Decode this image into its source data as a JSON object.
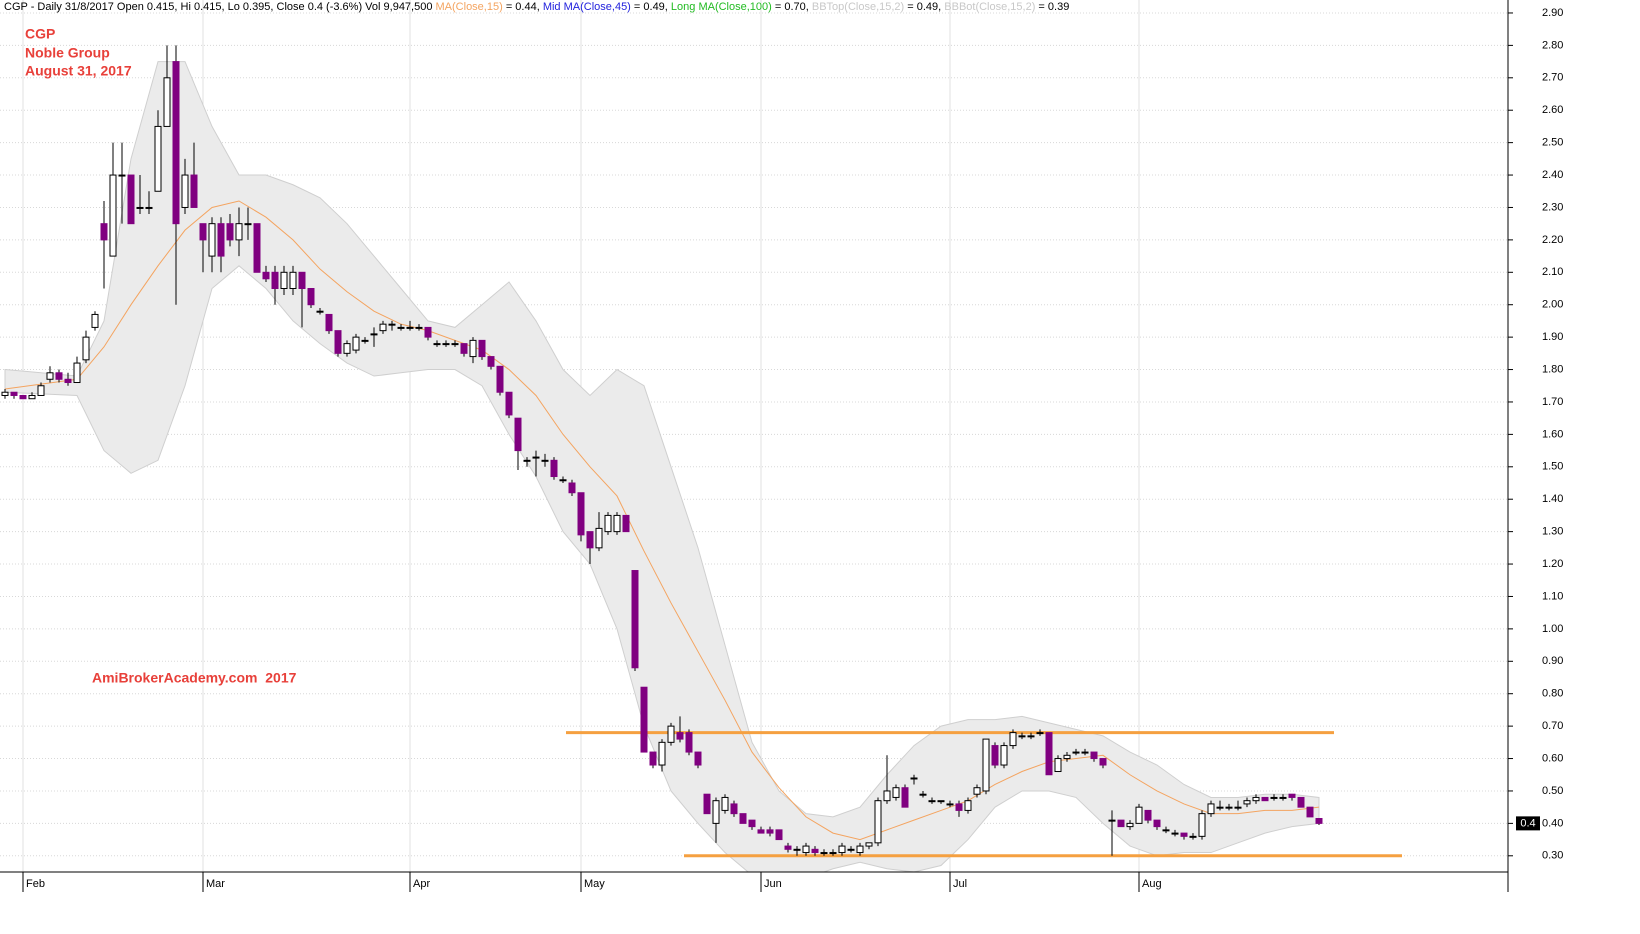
{
  "chart_data": {
    "type": "candlestick",
    "header": [
      {
        "text": "CGP - Daily 31/8/2017 Open 0.415, Hi 0.415, Lo 0.395, Close 0.4 (-3.6%) Vol 9,947,500 ",
        "color": "#000000"
      },
      {
        "text": "MA(Close,15)",
        "color": "#f4a460"
      },
      {
        "text": " = 0.44, ",
        "color": "#000000"
      },
      {
        "text": "Mid MA(Close,45)",
        "color": "#2222dd"
      },
      {
        "text": " = 0.49, ",
        "color": "#000000"
      },
      {
        "text": "Long MA(Close,100)",
        "color": "#22bb22"
      },
      {
        "text": " = 0.70, ",
        "color": "#000000"
      },
      {
        "text": "BBTop(Close,15,2)",
        "color": "#c8c8c8"
      },
      {
        "text": " = 0.49, ",
        "color": "#000000"
      },
      {
        "text": "BBBot(Close,15,2)",
        "color": "#c8c8c8"
      },
      {
        "text": " = 0.39",
        "color": "#000000"
      }
    ],
    "labels": [
      "CGP",
      "Noble Group",
      "August 31, 2017"
    ],
    "watermark": "AmiBrokerAcademy.com  2017",
    "ylim": [
      0.25,
      2.94
    ],
    "yticks": [
      {
        "value": 0.3,
        "label": "0.30"
      },
      {
        "value": 0.4,
        "label": "0.40"
      },
      {
        "value": 0.5,
        "label": "0.50"
      },
      {
        "value": 0.6,
        "label": "0.60"
      },
      {
        "value": 0.7,
        "label": "0.70"
      },
      {
        "value": 0.8,
        "label": "0.80"
      },
      {
        "value": 0.9,
        "label": "0.90"
      },
      {
        "value": 1.0,
        "label": "1.00"
      },
      {
        "value": 1.1,
        "label": "1.10"
      },
      {
        "value": 1.2,
        "label": "1.20"
      },
      {
        "value": 1.3,
        "label": "1.30"
      },
      {
        "value": 1.4,
        "label": "1.40"
      },
      {
        "value": 1.5,
        "label": "1.50"
      },
      {
        "value": 1.6,
        "label": "1.60"
      },
      {
        "value": 1.7,
        "label": "1.70"
      },
      {
        "value": 1.8,
        "label": "1.80"
      },
      {
        "value": 1.9,
        "label": "1.90"
      },
      {
        "value": 2.0,
        "label": "2.00"
      },
      {
        "value": 2.1,
        "label": "2.10"
      },
      {
        "value": 2.2,
        "label": "2.20"
      },
      {
        "value": 2.3,
        "label": "2.30"
      },
      {
        "value": 2.4,
        "label": "2.40"
      },
      {
        "value": 2.5,
        "label": "2.50"
      },
      {
        "value": 2.6,
        "label": "2.60"
      },
      {
        "value": 2.7,
        "label": "2.70"
      },
      {
        "value": 2.8,
        "label": "2.80"
      },
      {
        "value": 2.9,
        "label": "2.90"
      }
    ],
    "x_labels": [
      {
        "label": "Feb",
        "index": 2
      },
      {
        "label": "Mar",
        "index": 22
      },
      {
        "label": "Apr",
        "index": 45
      },
      {
        "label": "May",
        "index": 64
      },
      {
        "label": "Jun",
        "index": 84
      },
      {
        "label": "Jul",
        "index": 105
      },
      {
        "label": "Aug",
        "index": 126
      }
    ],
    "grid": true,
    "up_color": "#ffffff",
    "down_color": "#800080",
    "ohlc": [
      [
        1.72,
        1.74,
        1.71,
        1.73
      ],
      [
        1.73,
        1.73,
        1.71,
        1.72
      ],
      [
        1.72,
        1.72,
        1.71,
        1.71
      ],
      [
        1.71,
        1.73,
        1.71,
        1.72
      ],
      [
        1.72,
        1.76,
        1.72,
        1.75
      ],
      [
        1.77,
        1.81,
        1.76,
        1.79
      ],
      [
        1.79,
        1.8,
        1.76,
        1.77
      ],
      [
        1.77,
        1.79,
        1.75,
        1.76
      ],
      [
        1.76,
        1.84,
        1.76,
        1.82
      ],
      [
        1.83,
        1.92,
        1.82,
        1.9
      ],
      [
        1.93,
        1.98,
        1.92,
        1.97
      ],
      [
        2.25,
        2.32,
        2.05,
        2.2
      ],
      [
        2.15,
        2.5,
        2.15,
        2.4
      ],
      [
        2.4,
        2.5,
        2.25,
        2.4
      ],
      [
        2.4,
        2.4,
        2.25,
        2.25
      ],
      [
        2.3,
        2.4,
        2.28,
        2.3
      ],
      [
        2.3,
        2.35,
        2.28,
        2.3
      ],
      [
        2.35,
        2.6,
        2.35,
        2.55
      ],
      [
        2.55,
        2.8,
        2.55,
        2.7
      ],
      [
        2.75,
        2.8,
        2.0,
        2.25
      ],
      [
        2.3,
        2.45,
        2.28,
        2.4
      ],
      [
        2.4,
        2.5,
        2.3,
        2.3
      ],
      [
        2.25,
        2.25,
        2.1,
        2.2
      ],
      [
        2.15,
        2.27,
        2.1,
        2.25
      ],
      [
        2.25,
        2.27,
        2.1,
        2.15
      ],
      [
        2.25,
        2.28,
        2.18,
        2.2
      ],
      [
        2.2,
        2.3,
        2.15,
        2.25
      ],
      [
        2.25,
        2.3,
        2.2,
        2.25
      ],
      [
        2.25,
        2.25,
        2.1,
        2.1
      ],
      [
        2.1,
        2.12,
        2.07,
        2.08
      ],
      [
        2.1,
        2.12,
        2.0,
        2.05
      ],
      [
        2.05,
        2.12,
        2.03,
        2.1
      ],
      [
        2.05,
        2.12,
        2.03,
        2.1
      ],
      [
        2.1,
        2.1,
        1.93,
        2.05
      ],
      [
        2.05,
        2.05,
        1.99,
        2.0
      ],
      [
        1.98,
        1.99,
        1.97,
        1.98
      ],
      [
        1.97,
        1.97,
        1.91,
        1.92
      ],
      [
        1.92,
        1.92,
        1.84,
        1.85
      ],
      [
        1.85,
        1.89,
        1.84,
        1.88
      ],
      [
        1.86,
        1.91,
        1.85,
        1.9
      ],
      [
        1.89,
        1.9,
        1.88,
        1.89
      ],
      [
        1.91,
        1.93,
        1.87,
        1.91
      ],
      [
        1.92,
        1.95,
        1.91,
        1.94
      ],
      [
        1.94,
        1.95,
        1.92,
        1.94
      ],
      [
        1.93,
        1.94,
        1.92,
        1.93
      ],
      [
        1.93,
        1.95,
        1.92,
        1.93
      ],
      [
        1.93,
        1.94,
        1.92,
        1.93
      ],
      [
        1.93,
        1.93,
        1.89,
        1.9
      ],
      [
        1.88,
        1.89,
        1.87,
        1.88
      ],
      [
        1.88,
        1.89,
        1.87,
        1.88
      ],
      [
        1.88,
        1.89,
        1.87,
        1.88
      ],
      [
        1.88,
        1.88,
        1.84,
        1.85
      ],
      [
        1.84,
        1.9,
        1.82,
        1.89
      ],
      [
        1.89,
        1.89,
        1.83,
        1.84
      ],
      [
        1.84,
        1.84,
        1.8,
        1.81
      ],
      [
        1.81,
        1.81,
        1.72,
        1.73
      ],
      [
        1.73,
        1.73,
        1.65,
        1.66
      ],
      [
        1.65,
        1.65,
        1.49,
        1.55
      ],
      [
        1.52,
        1.53,
        1.5,
        1.52
      ],
      [
        1.53,
        1.55,
        1.47,
        1.53
      ],
      [
        1.52,
        1.54,
        1.5,
        1.52
      ],
      [
        1.52,
        1.53,
        1.46,
        1.47
      ],
      [
        1.46,
        1.47,
        1.45,
        1.46
      ],
      [
        1.45,
        1.46,
        1.41,
        1.42
      ],
      [
        1.42,
        1.42,
        1.27,
        1.29
      ],
      [
        1.3,
        1.3,
        1.2,
        1.25
      ],
      [
        1.25,
        1.36,
        1.24,
        1.31
      ],
      [
        1.3,
        1.36,
        1.29,
        1.35
      ],
      [
        1.3,
        1.36,
        1.29,
        1.35
      ],
      [
        1.35,
        1.35,
        1.3,
        1.3
      ],
      [
        1.18,
        1.18,
        0.87,
        0.88
      ],
      [
        0.82,
        0.82,
        0.62,
        0.62
      ],
      [
        0.62,
        0.62,
        0.57,
        0.58
      ],
      [
        0.58,
        0.66,
        0.56,
        0.65
      ],
      [
        0.65,
        0.71,
        0.64,
        0.7
      ],
      [
        0.68,
        0.73,
        0.65,
        0.66
      ],
      [
        0.68,
        0.69,
        0.61,
        0.62
      ],
      [
        0.62,
        0.62,
        0.57,
        0.58
      ],
      [
        0.49,
        0.49,
        0.43,
        0.43
      ],
      [
        0.4,
        0.48,
        0.34,
        0.47
      ],
      [
        0.44,
        0.49,
        0.43,
        0.48
      ],
      [
        0.46,
        0.47,
        0.42,
        0.43
      ],
      [
        0.43,
        0.43,
        0.4,
        0.4
      ],
      [
        0.41,
        0.41,
        0.38,
        0.39
      ],
      [
        0.38,
        0.39,
        0.37,
        0.37
      ],
      [
        0.38,
        0.39,
        0.36,
        0.37
      ],
      [
        0.38,
        0.38,
        0.35,
        0.35
      ],
      [
        0.33,
        0.34,
        0.31,
        0.32
      ],
      [
        0.32,
        0.33,
        0.3,
        0.32
      ],
      [
        0.31,
        0.34,
        0.3,
        0.33
      ],
      [
        0.32,
        0.33,
        0.3,
        0.31
      ],
      [
        0.31,
        0.32,
        0.3,
        0.31
      ],
      [
        0.31,
        0.32,
        0.3,
        0.31
      ],
      [
        0.31,
        0.34,
        0.3,
        0.33
      ],
      [
        0.32,
        0.33,
        0.31,
        0.32
      ],
      [
        0.31,
        0.34,
        0.3,
        0.33
      ],
      [
        0.33,
        0.34,
        0.32,
        0.34
      ],
      [
        0.34,
        0.48,
        0.33,
        0.47
      ],
      [
        0.47,
        0.61,
        0.46,
        0.5
      ],
      [
        0.48,
        0.52,
        0.47,
        0.51
      ],
      [
        0.51,
        0.52,
        0.45,
        0.45
      ],
      [
        0.54,
        0.55,
        0.52,
        0.54
      ],
      [
        0.49,
        0.5,
        0.48,
        0.49
      ],
      [
        0.47,
        0.48,
        0.46,
        0.47
      ],
      [
        0.47,
        0.47,
        0.46,
        0.47
      ],
      [
        0.46,
        0.47,
        0.45,
        0.46
      ],
      [
        0.46,
        0.47,
        0.42,
        0.44
      ],
      [
        0.44,
        0.48,
        0.43,
        0.47
      ],
      [
        0.49,
        0.52,
        0.48,
        0.51
      ],
      [
        0.5,
        0.66,
        0.49,
        0.66
      ],
      [
        0.64,
        0.65,
        0.57,
        0.58
      ],
      [
        0.58,
        0.65,
        0.57,
        0.64
      ],
      [
        0.64,
        0.69,
        0.63,
        0.68
      ],
      [
        0.67,
        0.68,
        0.66,
        0.67
      ],
      [
        0.67,
        0.68,
        0.66,
        0.67
      ],
      [
        0.68,
        0.69,
        0.67,
        0.68
      ],
      [
        0.68,
        0.68,
        0.55,
        0.55
      ],
      [
        0.56,
        0.61,
        0.56,
        0.6
      ],
      [
        0.6,
        0.62,
        0.59,
        0.61
      ],
      [
        0.62,
        0.63,
        0.61,
        0.62
      ],
      [
        0.62,
        0.63,
        0.61,
        0.62
      ],
      [
        0.62,
        0.62,
        0.59,
        0.6
      ],
      [
        0.6,
        0.6,
        0.57,
        0.58
      ],
      [
        0.41,
        0.44,
        0.3,
        0.41
      ],
      [
        0.41,
        0.41,
        0.39,
        0.39
      ],
      [
        0.39,
        0.41,
        0.38,
        0.4
      ],
      [
        0.4,
        0.46,
        0.4,
        0.45
      ],
      [
        0.44,
        0.44,
        0.4,
        0.41
      ],
      [
        0.41,
        0.41,
        0.38,
        0.39
      ],
      [
        0.38,
        0.39,
        0.37,
        0.38
      ],
      [
        0.37,
        0.38,
        0.36,
        0.37
      ],
      [
        0.37,
        0.37,
        0.35,
        0.36
      ],
      [
        0.36,
        0.37,
        0.35,
        0.36
      ],
      [
        0.36,
        0.44,
        0.35,
        0.43
      ],
      [
        0.43,
        0.47,
        0.42,
        0.46
      ],
      [
        0.45,
        0.47,
        0.44,
        0.45
      ],
      [
        0.45,
        0.46,
        0.44,
        0.45
      ],
      [
        0.45,
        0.47,
        0.44,
        0.45
      ],
      [
        0.46,
        0.48,
        0.45,
        0.47
      ],
      [
        0.47,
        0.49,
        0.46,
        0.48
      ],
      [
        0.48,
        0.48,
        0.47,
        0.47
      ],
      [
        0.48,
        0.49,
        0.47,
        0.48
      ],
      [
        0.48,
        0.49,
        0.47,
        0.48
      ],
      [
        0.49,
        0.49,
        0.47,
        0.48
      ],
      [
        0.48,
        0.48,
        0.45,
        0.45
      ],
      [
        0.45,
        0.45,
        0.42,
        0.42
      ],
      [
        0.415,
        0.415,
        0.395,
        0.4
      ]
    ],
    "band_x": [
      0,
      8,
      11,
      14,
      17,
      20,
      23,
      26,
      29,
      32,
      35,
      38,
      41,
      44,
      47,
      50,
      53,
      56,
      59,
      62,
      65,
      68,
      71,
      74,
      77,
      80,
      83,
      86,
      89,
      92,
      95,
      98,
      101,
      104,
      107,
      110,
      113,
      116,
      119,
      122,
      125,
      128,
      131,
      134,
      137,
      140,
      143,
      146
    ],
    "ma15": [
      1.74,
      1.77,
      1.87,
      2.0,
      2.12,
      2.23,
      2.3,
      2.32,
      2.27,
      2.2,
      2.11,
      2.04,
      1.98,
      1.94,
      1.92,
      1.89,
      1.86,
      1.8,
      1.72,
      1.6,
      1.5,
      1.41,
      1.24,
      1.08,
      0.93,
      0.78,
      0.62,
      0.51,
      0.42,
      0.37,
      0.35,
      0.38,
      0.41,
      0.44,
      0.47,
      0.52,
      0.56,
      0.59,
      0.6,
      0.61,
      0.55,
      0.5,
      0.46,
      0.43,
      0.43,
      0.44,
      0.44,
      0.45
    ],
    "ma_color": "#f4a460",
    "bb_top": [
      1.8,
      1.78,
      1.95,
      2.45,
      2.75,
      2.75,
      2.55,
      2.4,
      2.4,
      2.37,
      2.33,
      2.25,
      2.15,
      2.05,
      1.95,
      1.93,
      2.0,
      2.07,
      1.95,
      1.8,
      1.72,
      1.8,
      1.75,
      1.5,
      1.25,
      0.95,
      0.65,
      0.5,
      0.43,
      0.42,
      0.45,
      0.55,
      0.64,
      0.7,
      0.72,
      0.72,
      0.73,
      0.71,
      0.69,
      0.67,
      0.62,
      0.58,
      0.52,
      0.48,
      0.48,
      0.49,
      0.49,
      0.48
    ],
    "bb_bot": [
      1.73,
      1.72,
      1.55,
      1.48,
      1.52,
      1.75,
      2.05,
      2.12,
      2.05,
      1.95,
      1.88,
      1.82,
      1.78,
      1.79,
      1.8,
      1.8,
      1.75,
      1.6,
      1.47,
      1.3,
      1.2,
      1.0,
      0.7,
      0.5,
      0.4,
      0.31,
      0.24,
      0.2,
      0.23,
      0.26,
      0.28,
      0.26,
      0.25,
      0.27,
      0.35,
      0.45,
      0.5,
      0.5,
      0.48,
      0.4,
      0.33,
      0.3,
      0.31,
      0.31,
      0.34,
      0.37,
      0.39,
      0.4
    ],
    "band_color": "#ebebeb",
    "levels": [
      0.68,
      0.3
    ],
    "level_color": "#f5a040",
    "last_price": 0.4
  }
}
